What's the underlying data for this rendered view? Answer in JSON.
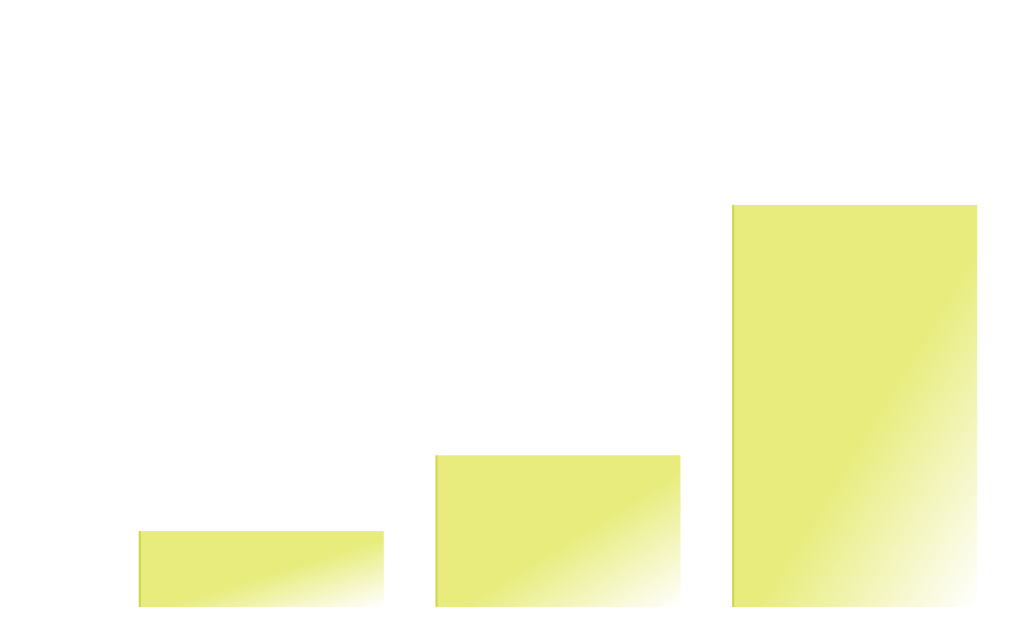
{
  "chart_data": {
    "type": "bar",
    "categories": [
      "",
      "",
      ""
    ],
    "values": [
      1,
      2,
      5.3
    ],
    "ylim": [
      0,
      8
    ],
    "grid": false,
    "legend": "none",
    "colors": {
      "bar_fill": "#e8ec7c",
      "bar_fade": "#ffffff",
      "bar_edge": "#cfd44e",
      "background": "#ffffff"
    }
  }
}
